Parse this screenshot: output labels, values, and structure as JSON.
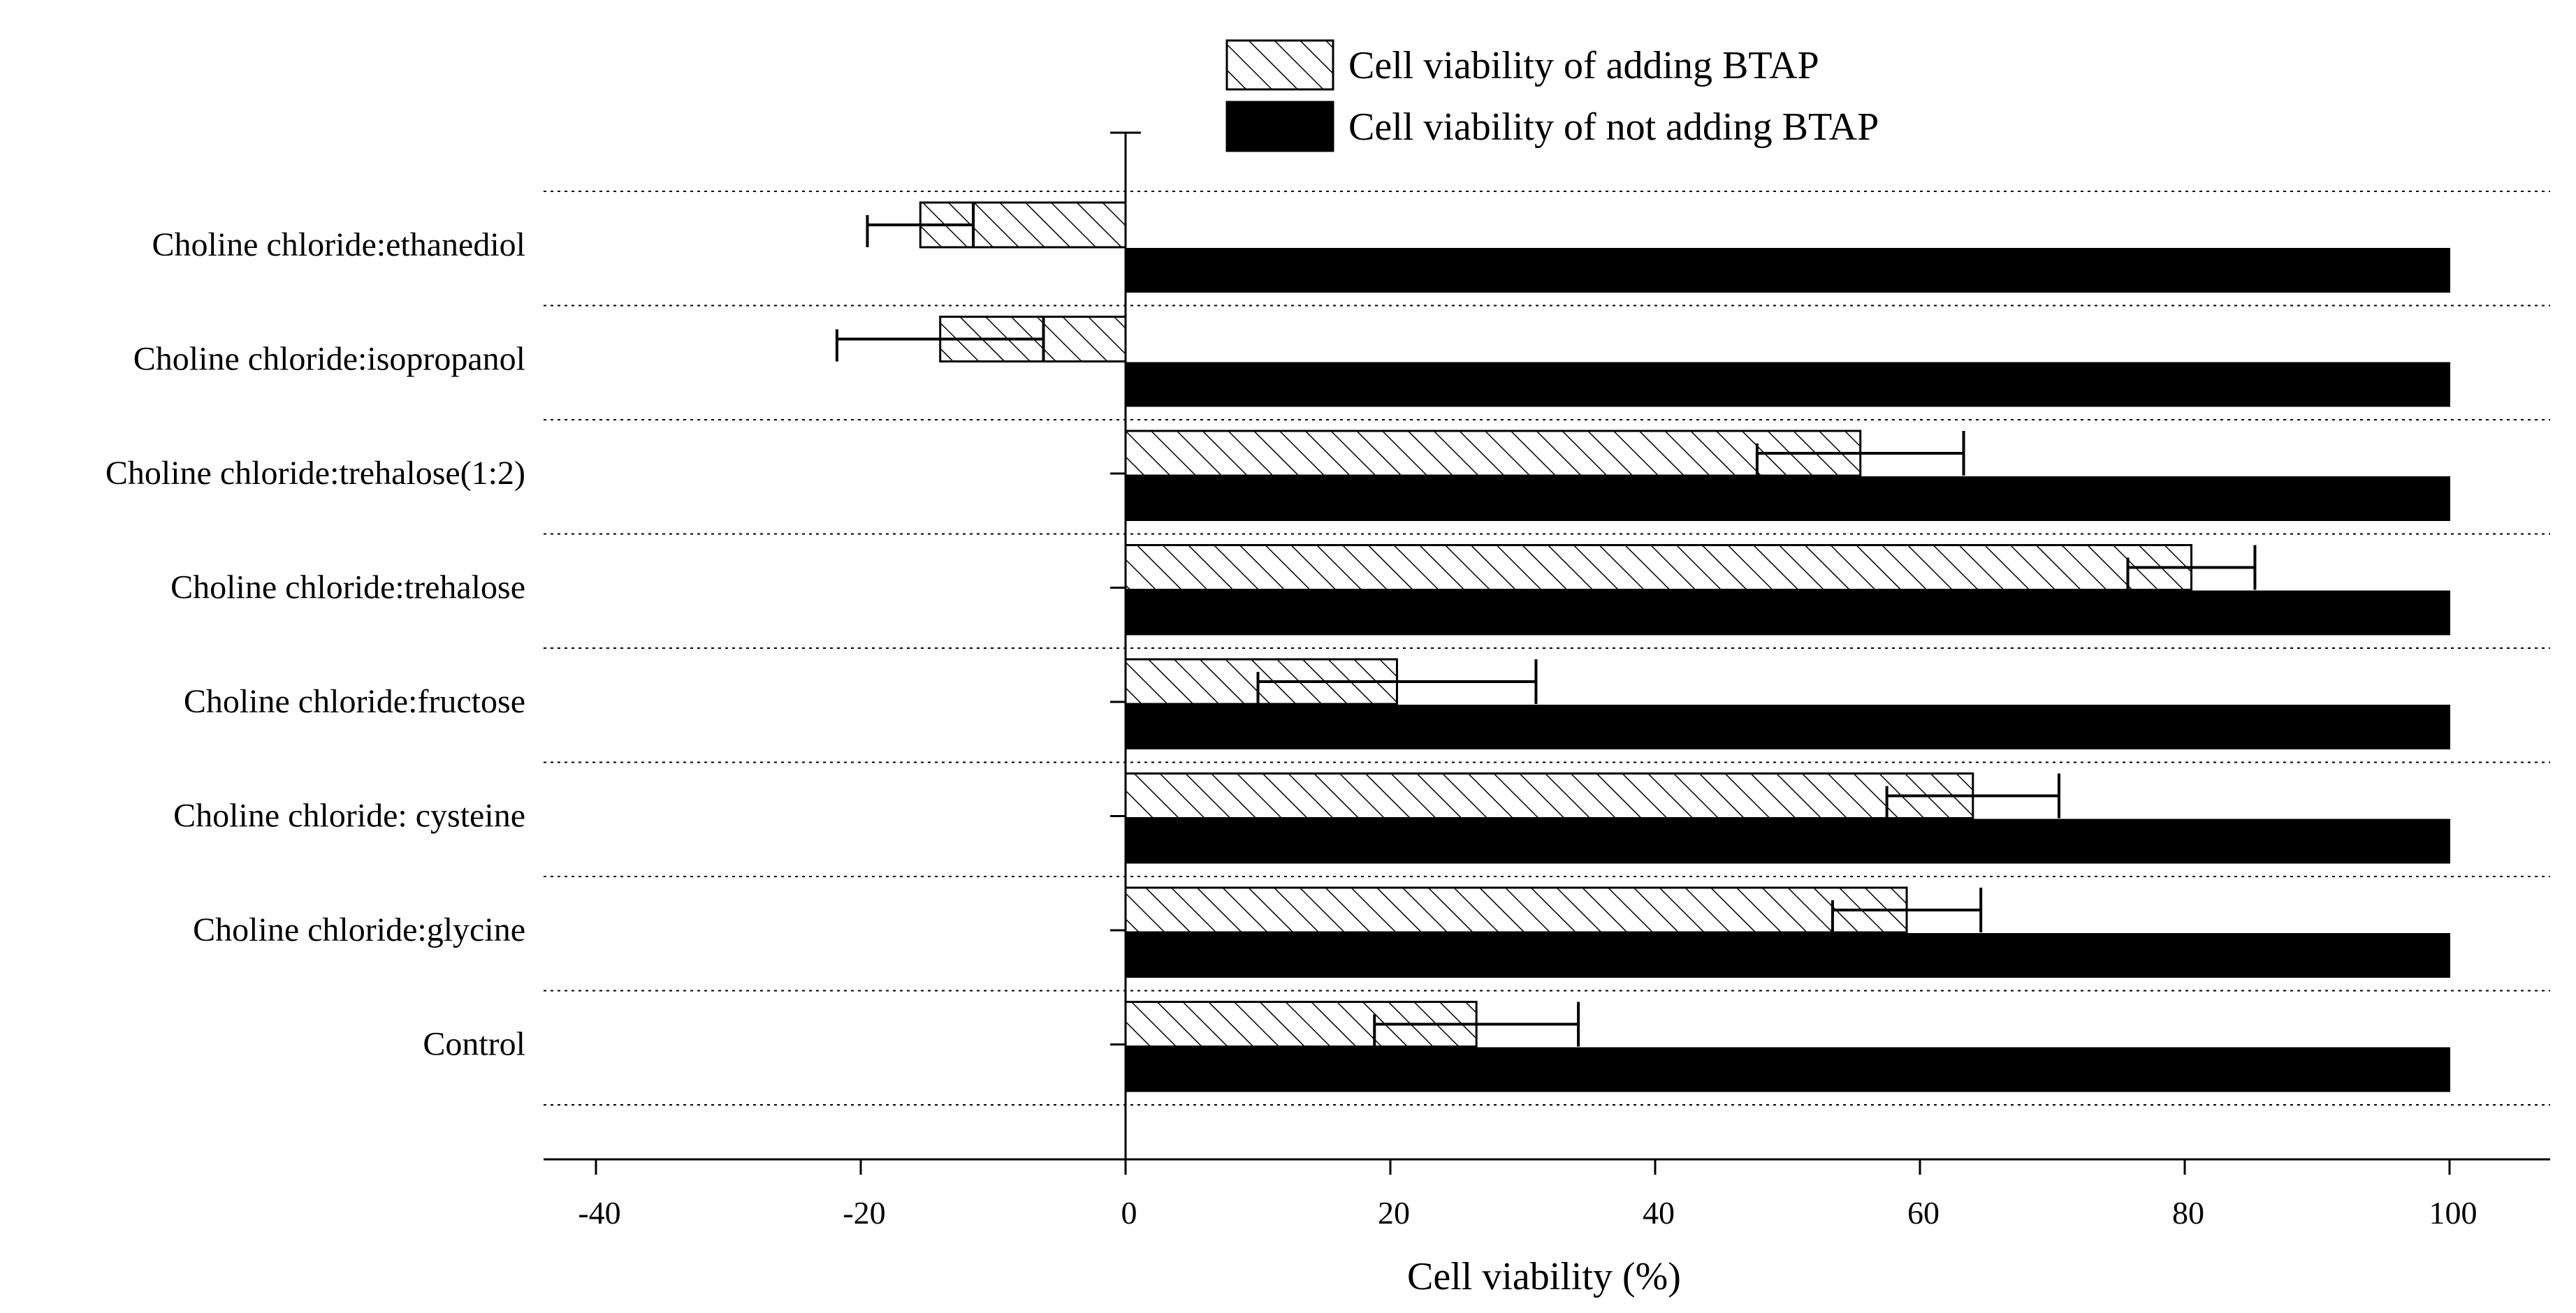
{
  "chart_data": {
    "type": "bar",
    "orientation": "horizontal",
    "title": "",
    "xlabel": "Cell viability (%)",
    "ylabel": "",
    "xlim": [
      -50,
      108
    ],
    "xticks": [
      -40,
      -20,
      0,
      20,
      40,
      60,
      80,
      100
    ],
    "xtick_labels": [
      "-40",
      "-20",
      "0",
      "20",
      "40",
      "60",
      "80",
      "100"
    ],
    "grid": "dotted horizontal separators between categories",
    "legend_position": "top-center",
    "categories": [
      "Choline chloride:ethanediol",
      "Choline chloride:isopropanol",
      "Choline chloride:trehalose(1:2)",
      "Choline chloride:trehalose",
      "Choline chloride:fructose",
      "Choline chloride: cysteine",
      "Choline chloride:glycine",
      "Control"
    ],
    "series": [
      {
        "name": "Cell viability of  adding BTAP",
        "pattern": "hatched",
        "values": [
          -15.5,
          -14.0,
          55.5,
          80.5,
          20.5,
          64.0,
          59.0,
          26.5
        ],
        "error": [
          4.0,
          7.8,
          7.8,
          4.8,
          10.5,
          6.5,
          5.6,
          7.7
        ]
      },
      {
        "name": "Cell viability of not adding BTAP",
        "pattern": "solid",
        "color": "#000000",
        "values": [
          100,
          100,
          100,
          100,
          100,
          100,
          100,
          100
        ],
        "error": [
          0,
          0,
          0,
          0,
          0,
          0,
          0,
          0
        ]
      }
    ]
  }
}
